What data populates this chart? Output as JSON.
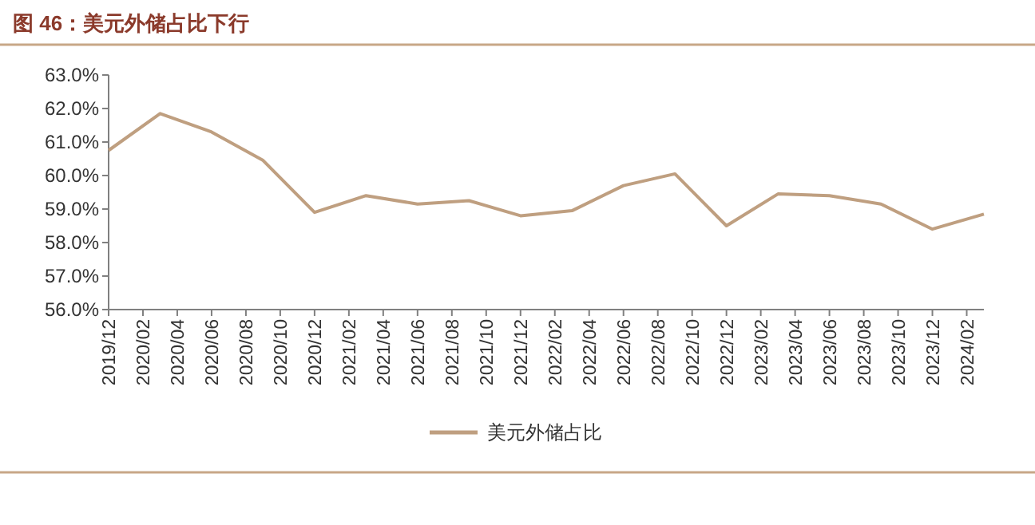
{
  "chart_data": {
    "type": "line",
    "title": "图 46：美元外储占比下行",
    "x": [
      "2019-12",
      "2020-03",
      "2020-06",
      "2020-09",
      "2020-12",
      "2021-03",
      "2021-06",
      "2021-09",
      "2021-12",
      "2022-03",
      "2022-06",
      "2022-09",
      "2022-12",
      "2023-03",
      "2023-06",
      "2023-09",
      "2023-12",
      "2024-03"
    ],
    "series": [
      {
        "name": "美元外储占比",
        "color": "#bf9f80",
        "values": [
          60.75,
          61.85,
          61.3,
          60.45,
          58.9,
          59.4,
          59.15,
          59.25,
          58.8,
          58.95,
          59.7,
          60.05,
          58.5,
          59.45,
          59.4,
          59.15,
          58.4,
          58.85
        ]
      }
    ],
    "xlim": [
      "2019-12",
      "2024-03"
    ],
    "xticks": [
      {
        "value": "2019-12",
        "label": "2019/12"
      },
      {
        "value": "2020-02",
        "label": "2020/02"
      },
      {
        "value": "2020-04",
        "label": "2020/04"
      },
      {
        "value": "2020-06",
        "label": "2020/06"
      },
      {
        "value": "2020-08",
        "label": "2020/08"
      },
      {
        "value": "2020-10",
        "label": "2020/10"
      },
      {
        "value": "2020-12",
        "label": "2020/12"
      },
      {
        "value": "2021-02",
        "label": "2021/02"
      },
      {
        "value": "2021-04",
        "label": "2021/04"
      },
      {
        "value": "2021-06",
        "label": "2021/06"
      },
      {
        "value": "2021-08",
        "label": "2021/08"
      },
      {
        "value": "2021-10",
        "label": "2021/10"
      },
      {
        "value": "2021-12",
        "label": "2021/12"
      },
      {
        "value": "2022-02",
        "label": "2022/02"
      },
      {
        "value": "2022-04",
        "label": "2022/04"
      },
      {
        "value": "2022-06",
        "label": "2022/06"
      },
      {
        "value": "2022-08",
        "label": "2022/08"
      },
      {
        "value": "2022-10",
        "label": "2022/10"
      },
      {
        "value": "2022-12",
        "label": "2022/12"
      },
      {
        "value": "2023-02",
        "label": "2023/02"
      },
      {
        "value": "2023-04",
        "label": "2023/04"
      },
      {
        "value": "2023-06",
        "label": "2023/06"
      },
      {
        "value": "2023-08",
        "label": "2023/08"
      },
      {
        "value": "2023-10",
        "label": "2023/10"
      },
      {
        "value": "2023-12",
        "label": "2023/12"
      },
      {
        "value": "2024-02",
        "label": "2024/02"
      }
    ],
    "ylim": [
      56,
      63
    ],
    "yticks": [
      {
        "value": 56,
        "label": "56.0%"
      },
      {
        "value": 57,
        "label": "57.0%"
      },
      {
        "value": 58,
        "label": "58.0%"
      },
      {
        "value": 59,
        "label": "59.0%"
      },
      {
        "value": 60,
        "label": "60.0%"
      },
      {
        "value": 61,
        "label": "61.0%"
      },
      {
        "value": 62,
        "label": "62.0%"
      },
      {
        "value": 63,
        "label": "63.0%"
      }
    ],
    "legend": "bottom",
    "marker": "none",
    "line_style": "solid"
  }
}
